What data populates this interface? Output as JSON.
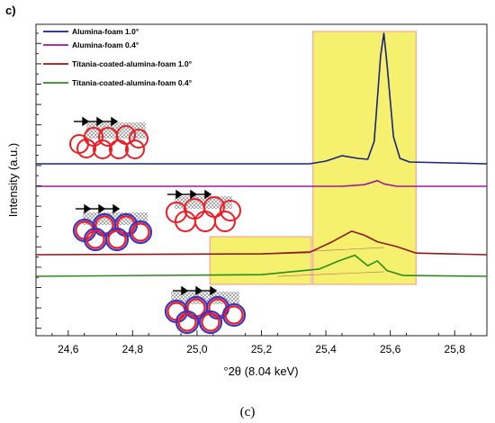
{
  "panel_label": "c)",
  "caption": "(c)",
  "chart_data": {
    "type": "line",
    "title": "",
    "xlabel": "°2θ (8.04 keV)",
    "ylabel": "Intensity (a.u.)",
    "xlim": [
      24.5,
      25.9
    ],
    "xticks": [
      "24,6",
      "24,8",
      "25,0",
      "25,2",
      "25,4",
      "25,6",
      "25,8"
    ],
    "xtick_values": [
      24.6,
      24.8,
      25.0,
      25.2,
      25.4,
      25.6,
      25.8
    ],
    "grid": false,
    "legend_position": "top-left",
    "series": [
      {
        "name": "Alumina-foam 1.0°",
        "color": "#1a237e",
        "values": [
          [
            24.5,
            0.0
          ],
          [
            25.35,
            0.0
          ],
          [
            25.4,
            0.3
          ],
          [
            25.45,
            0.9
          ],
          [
            25.5,
            0.6
          ],
          [
            25.53,
            0.5
          ],
          [
            25.55,
            2.5
          ],
          [
            25.57,
            12.0
          ],
          [
            25.58,
            14.5
          ],
          [
            25.59,
            11.0
          ],
          [
            25.61,
            3.0
          ],
          [
            25.63,
            0.6
          ],
          [
            25.66,
            0.2
          ],
          [
            25.9,
            0.0
          ]
        ]
      },
      {
        "name": "Alumina-foam 0.4°",
        "color": "#a0189a",
        "values": [
          [
            24.5,
            0.0
          ],
          [
            25.45,
            0.0
          ],
          [
            25.52,
            0.2
          ],
          [
            25.56,
            0.7
          ],
          [
            25.58,
            0.3
          ],
          [
            25.62,
            0.0
          ],
          [
            25.9,
            0.0
          ]
        ]
      },
      {
        "name": "Titania-coated-alumina-foam 1.0°",
        "color": "#8b1a1a",
        "values": [
          [
            24.5,
            0.0
          ],
          [
            25.2,
            0.1
          ],
          [
            25.35,
            0.3
          ],
          [
            25.42,
            1.6
          ],
          [
            25.48,
            2.9
          ],
          [
            25.52,
            2.4
          ],
          [
            25.56,
            1.6
          ],
          [
            25.62,
            1.0
          ],
          [
            25.68,
            0.2
          ],
          [
            25.9,
            0.0
          ]
        ]
      },
      {
        "name": "Titania-coated-alumina-foam 0.4°",
        "color": "#2e8b1e",
        "values": [
          [
            24.5,
            0.0
          ],
          [
            25.2,
            0.2
          ],
          [
            25.38,
            0.9
          ],
          [
            25.44,
            1.9
          ],
          [
            25.49,
            2.6
          ],
          [
            25.53,
            1.3
          ],
          [
            25.56,
            1.9
          ],
          [
            25.59,
            0.7
          ],
          [
            25.64,
            0.1
          ],
          [
            25.9,
            0.0
          ]
        ]
      }
    ],
    "highlight_regions": [
      {
        "x_range": [
          25.36,
          25.68
        ],
        "color": "#f5f060"
      },
      {
        "x_range": [
          25.04,
          25.355
        ],
        "color": "#f5f060"
      }
    ]
  },
  "icons": [
    {
      "name": "alumina-foam-particles-icon",
      "colors": [
        "#ee1c24"
      ]
    },
    {
      "name": "alumina-foam-particles-icon",
      "colors": [
        "#ee1c24"
      ]
    },
    {
      "name": "titania-coated-particles-icon",
      "colors": [
        "#ee1c24",
        "#3535c8"
      ]
    },
    {
      "name": "titania-coated-particles-icon",
      "colors": [
        "#ee1c24",
        "#3535c8"
      ]
    },
    {
      "name": "beam-arrows-icon",
      "colors": [
        "#000000"
      ]
    }
  ]
}
